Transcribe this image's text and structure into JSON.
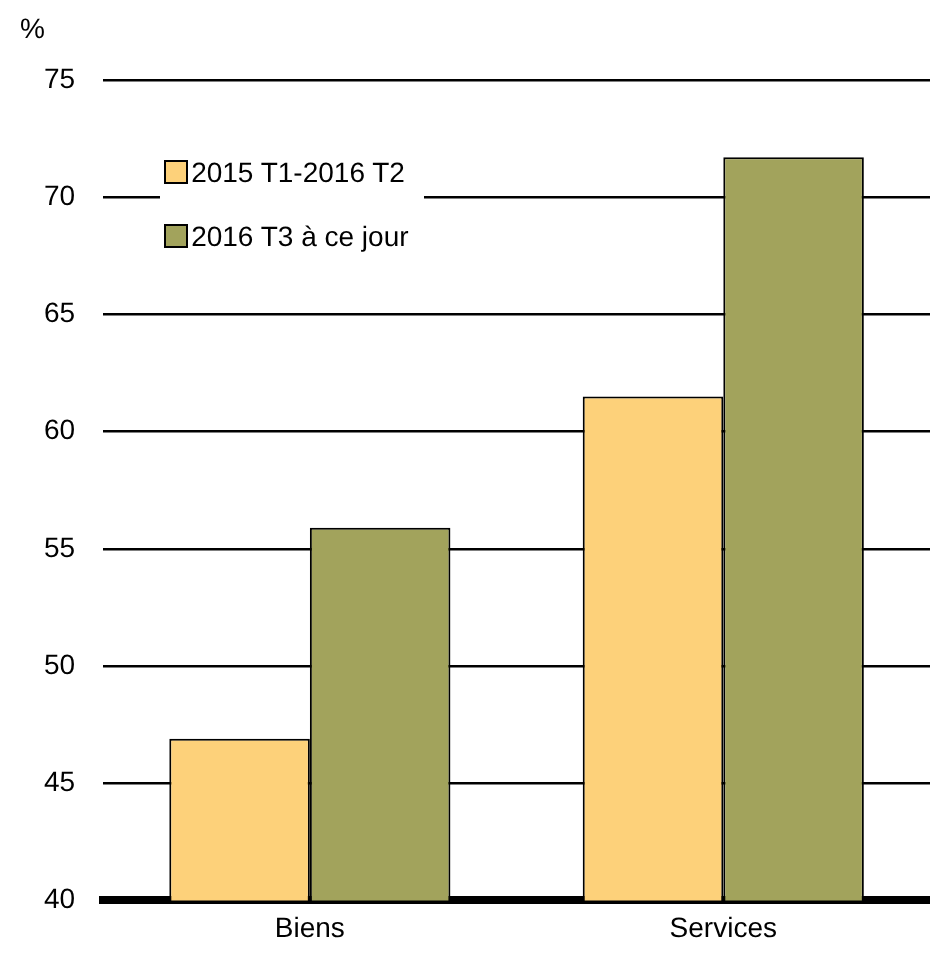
{
  "chart_data": {
    "type": "bar",
    "ylabel": "%",
    "categories": [
      "Biens",
      "Services"
    ],
    "series": [
      {
        "name": "2015 T1-2016 T2",
        "color": "#fdd17a",
        "values": [
          46.9,
          61.5
        ]
      },
      {
        "name": "2016 T3 à ce jour",
        "color": "#a2a35c",
        "values": [
          55.9,
          71.7
        ]
      }
    ],
    "ylim": [
      40,
      75
    ],
    "yticks": [
      40,
      45,
      50,
      55,
      60,
      65,
      70,
      75
    ],
    "grid": "y",
    "legend": "top left"
  }
}
